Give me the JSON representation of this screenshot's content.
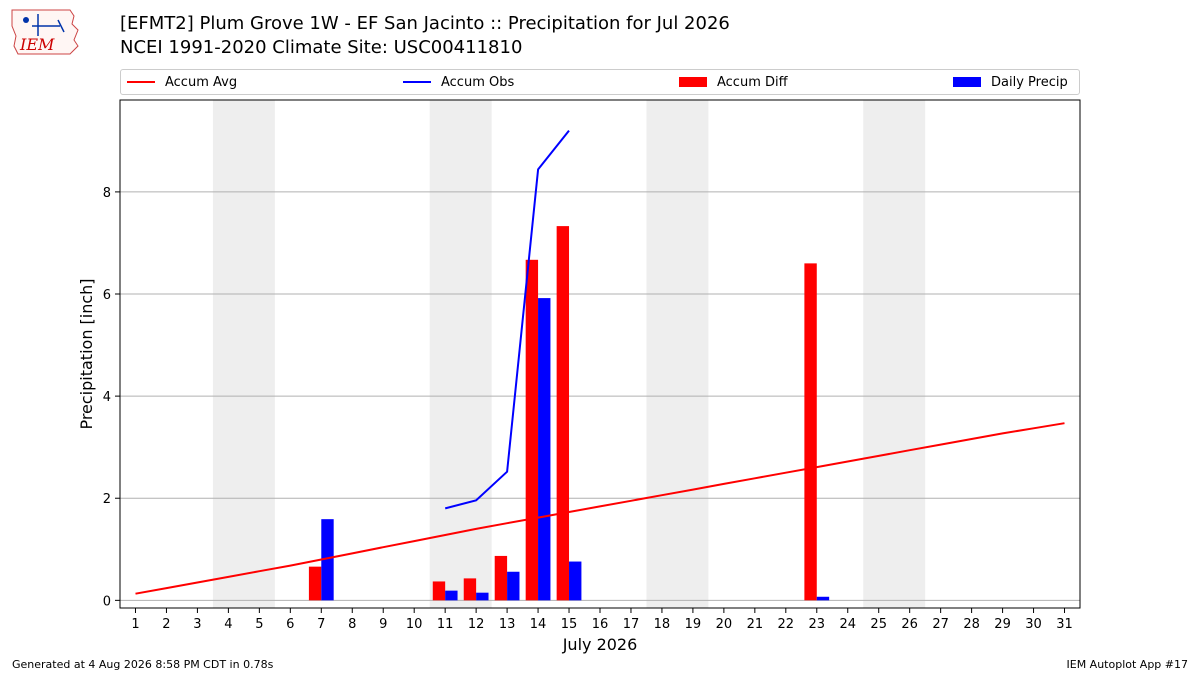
{
  "header": {
    "title_line1": "[EFMT2] Plum Grove 1W - EF San Jacinto :: Precipitation for Jul 2026",
    "title_line2": "NCEI 1991-2020 Climate Site: USC00411810",
    "logo_text": "IEM"
  },
  "footer": {
    "left": "Generated at 4 Aug 2026 8:58 PM CDT in 0.78s",
    "right": "IEM Autoplot App #17"
  },
  "colors": {
    "accum_avg": "#ff0000",
    "accum_obs": "#0000ff",
    "accum_diff": "#ff0000",
    "daily_precip": "#0000ff",
    "weekend_shade": "#eeeeee",
    "grid": "#b0b0b0"
  },
  "chart_data": {
    "type": "bar",
    "title": "[EFMT2] Plum Grove 1W - EF San Jacinto :: Precipitation for Jul 2026",
    "subtitle": "NCEI 1991-2020 Climate Site: USC00411810",
    "xlabel": "July 2026",
    "ylabel": "Precipitation [inch]",
    "xlim": [
      0.5,
      31.5
    ],
    "ylim": [
      -0.15,
      9.8
    ],
    "yticks": [
      0,
      2,
      4,
      6,
      8
    ],
    "xticks": [
      1,
      2,
      3,
      4,
      5,
      6,
      7,
      8,
      9,
      10,
      11,
      12,
      13,
      14,
      15,
      16,
      17,
      18,
      19,
      20,
      21,
      22,
      23,
      24,
      25,
      26,
      27,
      28,
      29,
      30,
      31
    ],
    "grid": "horizontal",
    "legend_position": "top",
    "weekend_shading": [
      [
        4,
        5
      ],
      [
        11,
        12
      ],
      [
        18,
        19
      ],
      [
        25,
        26
      ]
    ],
    "series": [
      {
        "name": "Accum Avg",
        "kind": "line",
        "x": [
          1,
          2,
          3,
          4,
          5,
          6,
          7,
          8,
          9,
          10,
          11,
          12,
          13,
          14,
          15,
          16,
          17,
          18,
          19,
          20,
          21,
          22,
          23,
          24,
          25,
          26,
          27,
          28,
          29,
          30,
          31
        ],
        "values": [
          0.13,
          0.24,
          0.35,
          0.46,
          0.57,
          0.68,
          0.8,
          0.92,
          1.04,
          1.16,
          1.28,
          1.4,
          1.51,
          1.62,
          1.73,
          1.84,
          1.95,
          2.06,
          2.17,
          2.28,
          2.39,
          2.5,
          2.61,
          2.72,
          2.83,
          2.94,
          3.05,
          3.16,
          3.27,
          3.37,
          3.47
        ]
      },
      {
        "name": "Accum Obs",
        "kind": "line",
        "x": [
          11,
          12,
          13,
          14,
          15
        ],
        "values": [
          1.8,
          1.96,
          2.52,
          8.44,
          9.2
        ]
      },
      {
        "name": "Accum Diff",
        "kind": "bar",
        "x": [
          7,
          11,
          12,
          13,
          14,
          15,
          23
        ],
        "values": [
          0.66,
          0.37,
          0.43,
          0.87,
          6.67,
          7.33,
          6.6
        ]
      },
      {
        "name": "Daily Precip",
        "kind": "bar",
        "x": [
          7,
          11,
          12,
          13,
          14,
          15,
          23
        ],
        "values": [
          1.59,
          0.19,
          0.15,
          0.56,
          5.92,
          0.76,
          0.07
        ]
      }
    ]
  }
}
